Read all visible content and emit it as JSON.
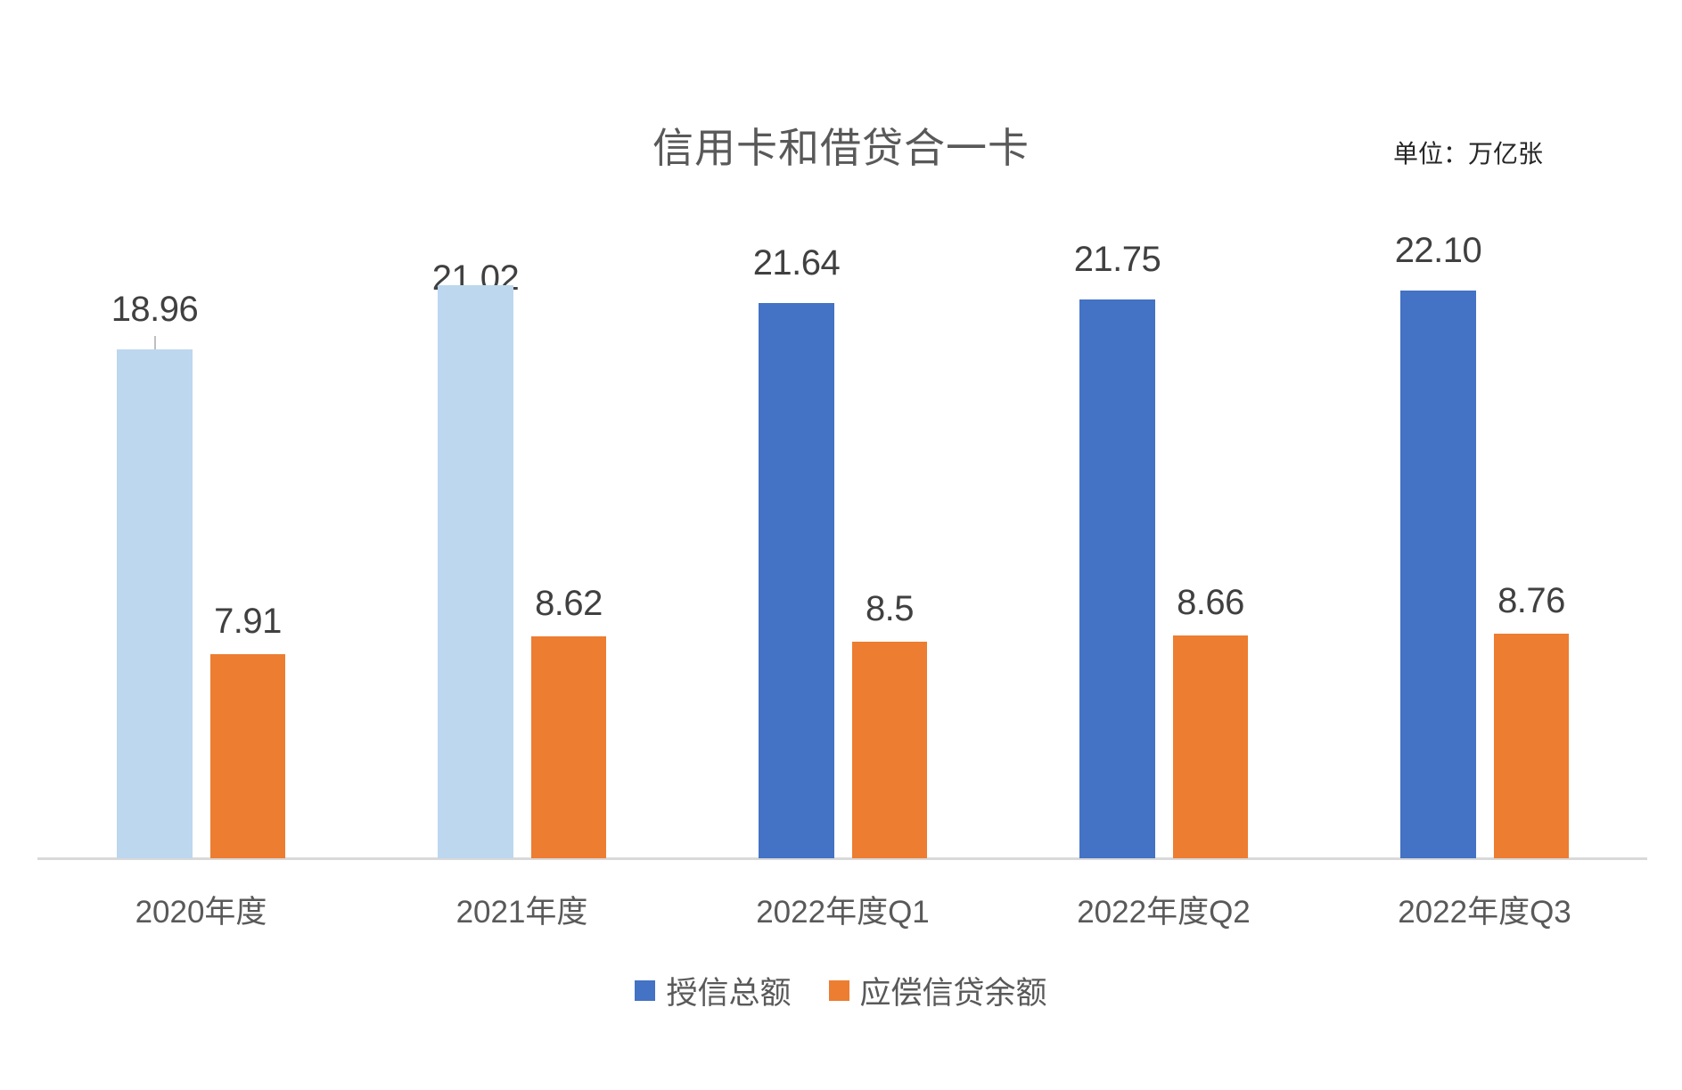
{
  "title": "信用卡和借贷合一卡",
  "unit_label": "单位：万亿张",
  "colors": {
    "credit_dark": "#4472C4",
    "credit_light": "#BDD7EE",
    "balance_orange": "#ED7D31",
    "axis_line": "#D9D9D9",
    "data_label_text": "#404040",
    "category_text": "#595959",
    "title_text": "#595959",
    "leader_line": "#BFBFBF"
  },
  "legend": {
    "items": [
      {
        "label": "授信总额",
        "swatch_color": "#4472C4"
      },
      {
        "label": "应偿信贷余额",
        "swatch_color": "#ED7D31"
      }
    ]
  },
  "chart_data": {
    "type": "bar",
    "title": "信用卡和借贷合一卡",
    "unit": "万亿张",
    "categories": [
      "2020年度",
      "2021年度",
      "2022年度Q1",
      "2022年度Q2",
      "2022年度Q3"
    ],
    "series": [
      {
        "name": "授信总额",
        "values": [
          18.96,
          21.02,
          21.64,
          21.75,
          22.1
        ],
        "labels": [
          "18.96",
          "21.02",
          "21.64",
          "21.75",
          "22.10"
        ],
        "bar_style_by_group": [
          "light",
          "light",
          "dark",
          "dark",
          "dark"
        ]
      },
      {
        "name": "应偿信贷余额",
        "values": [
          7.91,
          8.62,
          8.5,
          8.66,
          8.76
        ],
        "labels": [
          "7.91",
          "8.62",
          "8.5",
          "8.66",
          "8.76"
        ]
      }
    ],
    "ylabel": "",
    "xlabel": "",
    "y_axis_visible": false,
    "grid": false,
    "legend_position": "bottom",
    "notes": "2020 credit-total label has a small leader tick above its bar; 2021 credit-total label is partially clipped behind its bar top"
  }
}
